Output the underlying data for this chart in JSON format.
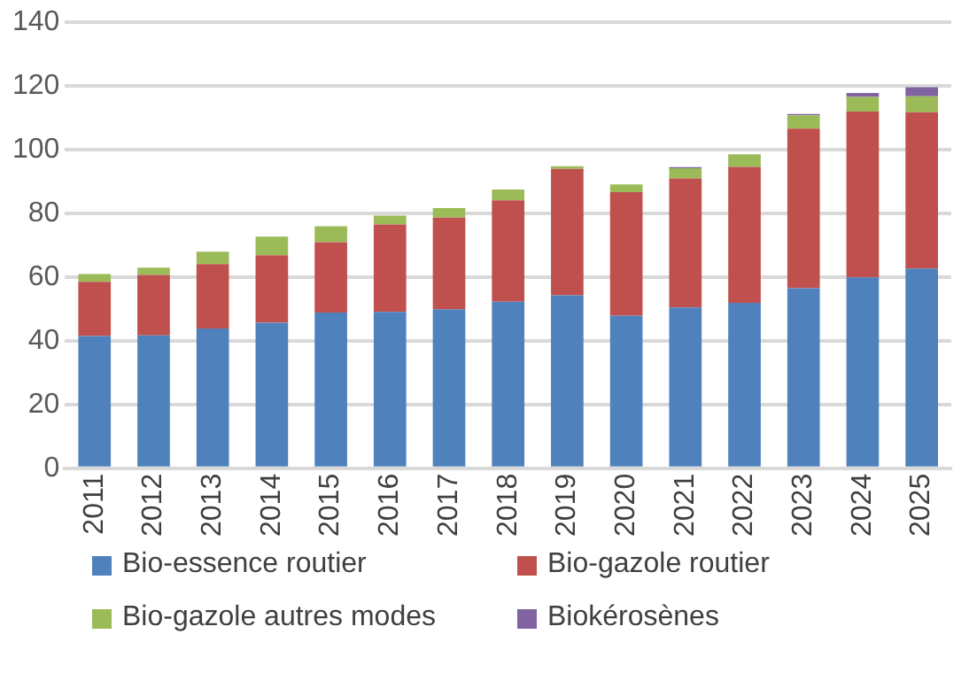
{
  "chart_data": {
    "type": "bar",
    "stacked": true,
    "categories": [
      "2011",
      "2012",
      "2013",
      "2014",
      "2015",
      "2016",
      "2017",
      "2018",
      "2019",
      "2020",
      "2021",
      "2022",
      "2023",
      "2024",
      "2025"
    ],
    "series": [
      {
        "name": "Bio-essence routier",
        "color": "#4f81bd",
        "values": [
          41.5,
          41.7,
          43.9,
          45.7,
          48.9,
          49.1,
          49.9,
          52.3,
          54.3,
          47.9,
          50.5,
          51.9,
          56.5,
          59.9,
          62.7
        ]
      },
      {
        "name": "Bio-gazole routier",
        "color": "#c0504d",
        "values": [
          17,
          19,
          20.2,
          21.2,
          22.1,
          27.4,
          28.8,
          31.8,
          39.7,
          38.8,
          40.5,
          42.7,
          50.1,
          52.1,
          49.1
        ]
      },
      {
        "name": "Bio-gazole autres modes",
        "color": "#9bbb59",
        "values": [
          2.5,
          2.3,
          3.9,
          5.8,
          5,
          2.8,
          3,
          3.4,
          0.8,
          2.4,
          3.2,
          4,
          4.2,
          4.6,
          5
        ]
      },
      {
        "name": "Biokérosènes",
        "color": "#8064a2",
        "values": [
          0,
          0,
          0,
          0,
          0,
          0,
          0,
          0,
          0,
          0,
          0.3,
          0,
          0.4,
          1.2,
          2.8
        ]
      }
    ],
    "ylim": [
      0,
      140
    ],
    "yticks": [
      0,
      20,
      40,
      60,
      80,
      100,
      120,
      140
    ],
    "grid": "y",
    "legend": "bottom"
  }
}
